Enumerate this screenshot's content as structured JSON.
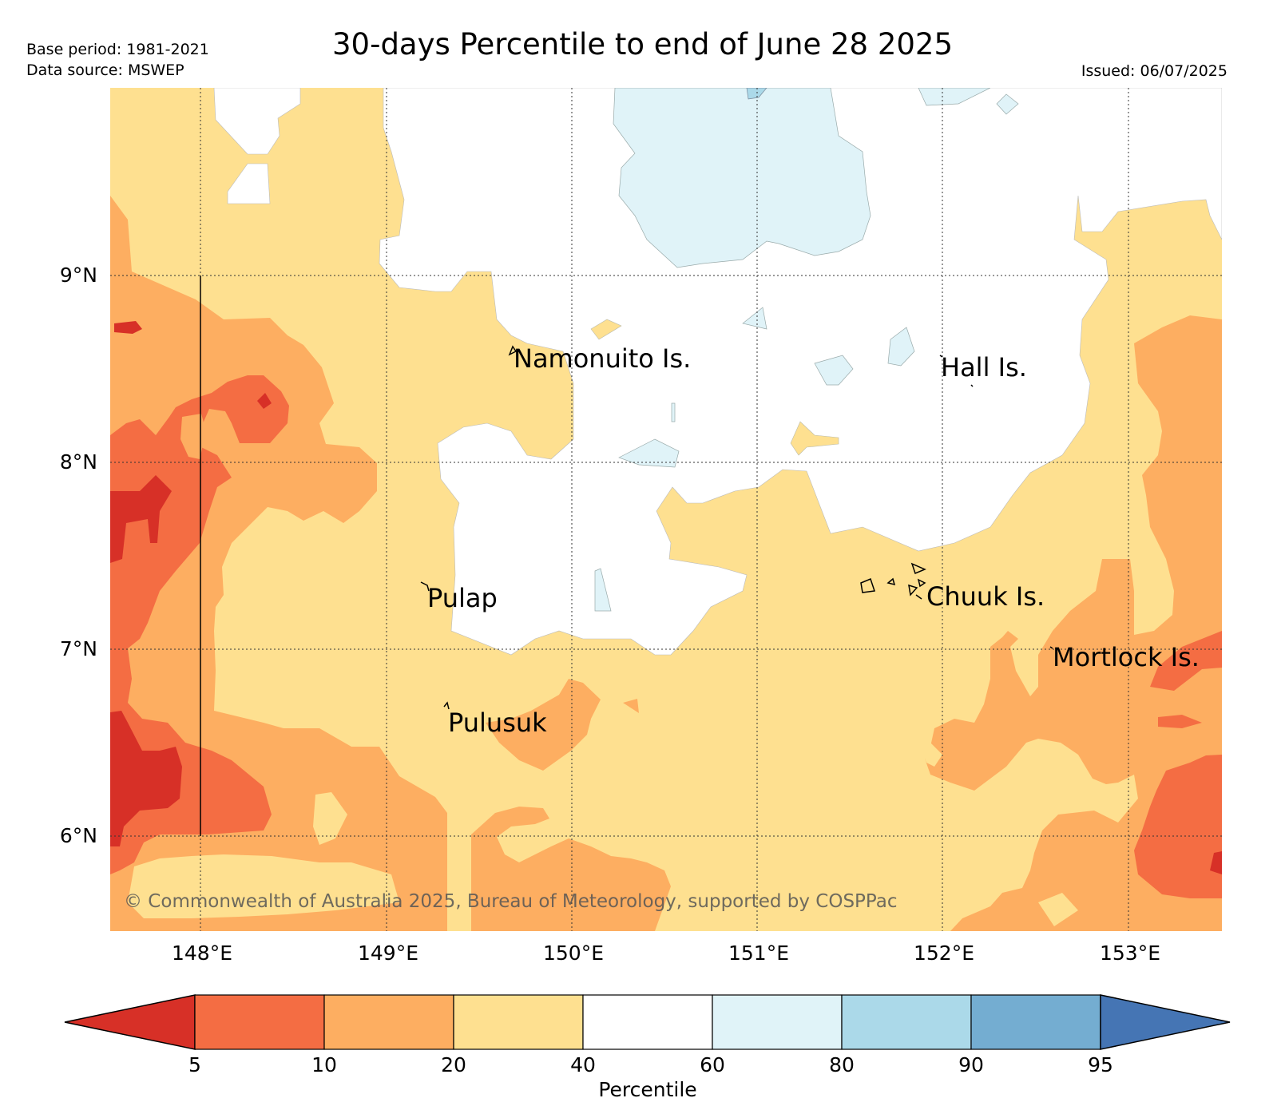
{
  "header": {
    "title": "30-days Percentile to end of June 28 2025",
    "base_period": "Base period: 1981-2021",
    "data_source": "Data source: MSWEP",
    "issued": "Issued: 06/07/2025"
  },
  "map": {
    "lon_range": [
      147.5,
      153.5
    ],
    "lat_range": [
      5.5,
      10.0
    ],
    "lon_ticks": [
      "148°E",
      "149°E",
      "150°E",
      "151°E",
      "152°E",
      "153°E"
    ],
    "lat_ticks": [
      "9°N",
      "8°N",
      "7°N",
      "6°N"
    ],
    "grid": "dotted",
    "places": [
      {
        "name": "Namonuito Is."
      },
      {
        "name": "Hall Is."
      },
      {
        "name": "Pulap"
      },
      {
        "name": "Chuuk Is."
      },
      {
        "name": "Mortlock Is."
      },
      {
        "name": "Pulusuk"
      }
    ],
    "copyright": "© Commonwealth of Australia 2025, Bureau of Meteorology, supported by COSPPac"
  },
  "colorbar": {
    "label": "Percentile",
    "ticks": [
      "5",
      "10",
      "20",
      "40",
      "60",
      "80",
      "90",
      "95"
    ],
    "colors": [
      "#d73027",
      "#f46d43",
      "#fdae61",
      "#fee090",
      "#ffffff",
      "#e0f3f8",
      "#abd9e9",
      "#74add1",
      "#4575b4"
    ]
  }
}
